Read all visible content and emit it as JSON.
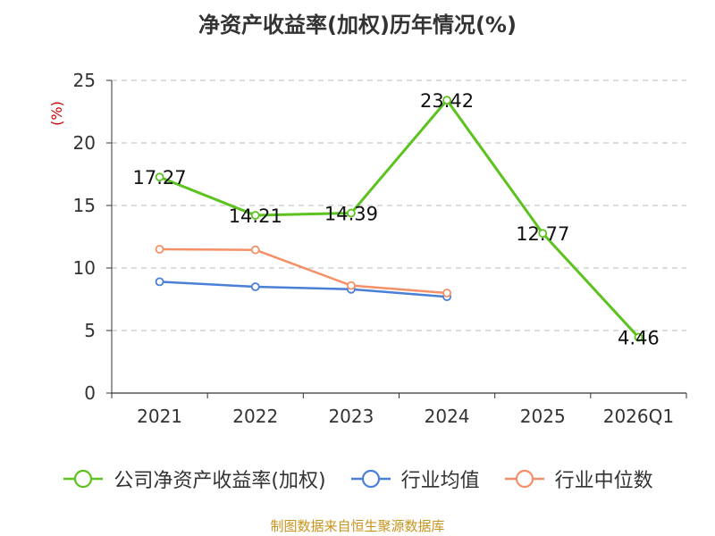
{
  "chart_data": {
    "type": "line",
    "title": "净资产收益率(加权)历年情况(%)",
    "ylabel": "(%)",
    "xlabel": "",
    "categories": [
      "2021",
      "2022",
      "2023",
      "2024",
      "2025",
      "2026Q1"
    ],
    "ylim": [
      0,
      25
    ],
    "yticks": [
      0,
      5,
      10,
      15,
      20,
      25
    ],
    "grid": true,
    "legend_position": "bottom",
    "series": [
      {
        "name": "公司净资产收益率(加权)",
        "color": "#5bc21e",
        "values": [
          17.27,
          14.21,
          14.39,
          23.42,
          12.77,
          4.46
        ],
        "labels": [
          "17.27",
          "14.21",
          "14.39",
          "23.42",
          "12.77",
          "4.46"
        ]
      },
      {
        "name": "行业均值",
        "color": "#4a7fd8",
        "values": [
          8.9,
          8.5,
          8.3,
          7.7,
          null,
          null
        ]
      },
      {
        "name": "行业中位数",
        "color": "#f59066",
        "values": [
          11.5,
          11.45,
          8.6,
          8.0,
          null,
          null
        ]
      }
    ]
  },
  "source": "制图数据来自恒生聚源数据库"
}
